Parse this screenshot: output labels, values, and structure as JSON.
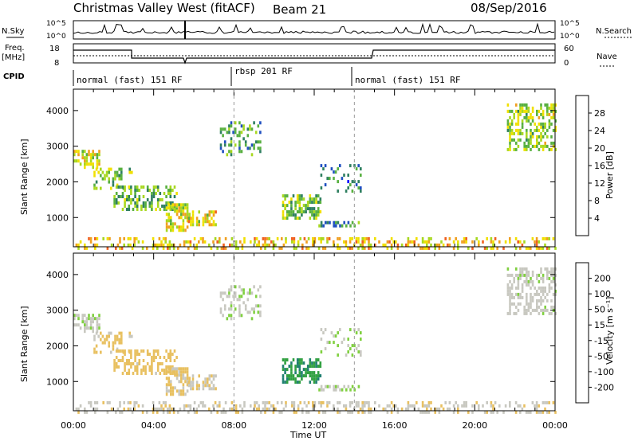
{
  "header": {
    "title": "Christmas Valley West (fitACF)",
    "beam": "Beam 21",
    "date": "08/Sep/2016"
  },
  "top_panels": {
    "nsky_label": "N.Sky",
    "nsearch_label": "N.Search",
    "noise_ticks": [
      "10^5",
      "10^0"
    ],
    "freq_label": "Freq.",
    "freq_unit": "[MHz]",
    "freq_ticks": [
      "18",
      "8"
    ],
    "nave_label": "Nave",
    "nave_ticks": [
      "60",
      "0"
    ],
    "cpid_label": "CPID",
    "cpid_segments": [
      {
        "label": "normal (fast) 151 RF",
        "start_hour": 0,
        "end_hour": 8
      },
      {
        "label": "rbsp 201 RF",
        "start_hour": 8,
        "end_hour": 14
      },
      {
        "label": "normal (fast) 151 RF",
        "start_hour": 14,
        "end_hour": 24
      }
    ]
  },
  "axes": {
    "x_ticks": [
      "00:00",
      "04:00",
      "08:00",
      "12:00",
      "16:00",
      "20:00",
      "00:00"
    ],
    "xlabel": "Time UT",
    "ylabel": "Slant Range [km]",
    "y_ticks": [
      "4000",
      "3000",
      "2000",
      "1000"
    ],
    "power_label": "Power [dB]",
    "power_ticks": [
      "28",
      "24",
      "20",
      "16",
      "12",
      "8",
      "4"
    ],
    "velocity_label": "Velocity [m s⁻¹]",
    "velocity_ticks": [
      "200",
      "100",
      "50",
      "15",
      "-15",
      "-50",
      "-100",
      "-200"
    ]
  },
  "colors": {
    "power_scale": [
      "#0000ff",
      "#1f4fc0",
      "#2f7f60",
      "#58b040",
      "#a8d820",
      "#f0e000",
      "#f0a020",
      "#f06020",
      "#e02010"
    ],
    "velocity_scale": [
      "#e01010",
      "#ff6010",
      "#ffa020",
      "#e8c060",
      "#c8c8c0",
      "#80d040",
      "#30a040",
      "#208070",
      "#2040b0"
    ]
  },
  "chart_data": {
    "type": "heatmap",
    "x_range_hours": [
      0,
      24
    ],
    "y_range_km": [
      180,
      4600
    ],
    "power_range_db": [
      0,
      30
    ],
    "velocity_range": [
      -250,
      250
    ],
    "echo_regions": [
      {
        "name": "A",
        "t": [
          0.0,
          1.3
        ],
        "r": [
          2450,
          2900
        ],
        "power": 17,
        "velocity": 15,
        "density": 0.55
      },
      {
        "name": "B",
        "t": [
          1.0,
          2.9
        ],
        "r": [
          1800,
          2400
        ],
        "power": 14,
        "velocity": -45,
        "density": 0.4
      },
      {
        "name": "C",
        "t": [
          2.0,
          5.1
        ],
        "r": [
          1200,
          1900
        ],
        "power": 12,
        "velocity": -60,
        "density": 0.55
      },
      {
        "name": "D",
        "t": [
          4.6,
          5.8
        ],
        "r": [
          650,
          1400
        ],
        "power": 18,
        "velocity": -40,
        "density": 0.6
      },
      {
        "name": "E",
        "t": [
          5.7,
          7.1
        ],
        "r": [
          800,
          1200
        ],
        "power": 19,
        "velocity": -30,
        "density": 0.55
      },
      {
        "name": "F",
        "t": [
          7.3,
          9.3
        ],
        "r": [
          2800,
          3700
        ],
        "power": 10,
        "velocity": 20,
        "density": 0.35
      },
      {
        "name": "G",
        "t": [
          10.4,
          12.3
        ],
        "r": [
          1000,
          1650
        ],
        "power": 13,
        "velocity": 150,
        "density": 0.65
      },
      {
        "name": "H",
        "t": [
          12.0,
          14.2
        ],
        "r": [
          780,
          900
        ],
        "power": 9,
        "velocity": 40,
        "density": 0.5
      },
      {
        "name": "I",
        "t": [
          12.2,
          14.4
        ],
        "r": [
          1700,
          2500
        ],
        "power": 7,
        "velocity": 30,
        "density": 0.2
      },
      {
        "name": "J",
        "t": [
          21.6,
          24.0
        ],
        "r": [
          2900,
          4200
        ],
        "power": 15,
        "velocity": 10,
        "density": 0.5
      },
      {
        "name": "K",
        "t": [
          0.0,
          24.0
        ],
        "r": [
          180,
          450
        ],
        "power": 20,
        "velocity": -20,
        "density": 0.35
      }
    ]
  }
}
